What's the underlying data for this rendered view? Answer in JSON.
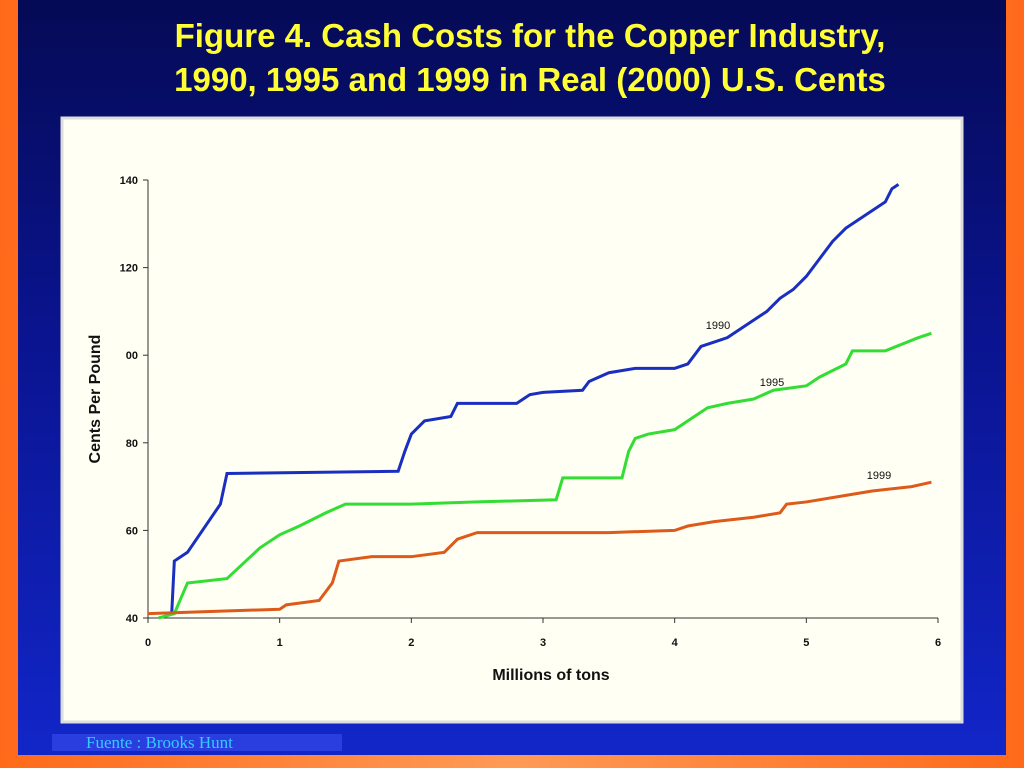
{
  "chart_data": {
    "type": "line",
    "title": [
      "Figure 4. Cash Costs for the Copper Industry,",
      "1990, 1995 and 1999 in Real (2000) U.S. Cents"
    ],
    "xlabel": "Millions of tons",
    "ylabel": "Cents Per Pound",
    "xlim": [
      0,
      6
    ],
    "xticks": [
      0,
      1,
      2,
      3,
      4,
      5,
      6
    ],
    "ylim": [
      40,
      140
    ],
    "yticks": [
      40,
      60,
      80,
      {
        "value": 100,
        "label": "00"
      },
      120,
      140
    ],
    "series": [
      {
        "name": "1990",
        "color": "#1a2fc0",
        "x": [
          0.18,
          0.2,
          0.3,
          0.55,
          0.6,
          1.9,
          1.95,
          2.0,
          2.1,
          2.3,
          2.35,
          2.8,
          2.9,
          3.0,
          3.3,
          3.35,
          3.5,
          3.7,
          4.0,
          4.1,
          4.2,
          4.3,
          4.4,
          4.5,
          4.6,
          4.7,
          4.8,
          4.9,
          5.0,
          5.1,
          5.2,
          5.3,
          5.4,
          5.5,
          5.6,
          5.65,
          5.7
        ],
        "values": [
          41,
          53,
          55,
          66,
          73,
          73.5,
          78,
          82,
          85,
          86,
          89,
          89,
          91,
          91.5,
          92,
          94,
          96,
          97,
          97,
          98,
          102,
          103,
          104,
          106,
          108,
          110,
          113,
          115,
          118,
          122,
          126,
          129,
          131,
          133,
          135,
          138,
          139
        ]
      },
      {
        "name": "1995",
        "color": "#33dd33",
        "x": [
          0.08,
          0.2,
          0.3,
          0.6,
          0.85,
          1.0,
          1.15,
          1.35,
          1.5,
          2.0,
          2.5,
          3.1,
          3.15,
          3.6,
          3.65,
          3.7,
          3.8,
          4.0,
          4.15,
          4.25,
          4.4,
          4.6,
          4.75,
          5.0,
          5.1,
          5.3,
          5.35,
          5.6,
          5.85,
          5.95
        ],
        "values": [
          40,
          41,
          48,
          49,
          56,
          59,
          61,
          64,
          66,
          66,
          66.5,
          67,
          72,
          72,
          78,
          81,
          82,
          83,
          86,
          88,
          89,
          90,
          92,
          93,
          95,
          98,
          101,
          101,
          104,
          105
        ]
      },
      {
        "name": "1999",
        "color": "#dd5a1a",
        "x": [
          0,
          0.5,
          1.0,
          1.05,
          1.3,
          1.4,
          1.45,
          1.7,
          2.0,
          2.25,
          2.35,
          2.5,
          3.0,
          3.5,
          4.0,
          4.1,
          4.3,
          4.6,
          4.8,
          4.85,
          5.0,
          5.3,
          5.5,
          5.8,
          5.95
        ],
        "values": [
          41,
          41.5,
          42,
          43,
          44,
          48,
          53,
          54,
          54,
          55,
          58,
          59.5,
          59.5,
          59.5,
          60,
          61,
          62,
          63,
          64,
          66,
          66.5,
          68,
          69,
          70,
          71
        ]
      }
    ]
  },
  "footer": "Fuente : Brooks Hunt"
}
